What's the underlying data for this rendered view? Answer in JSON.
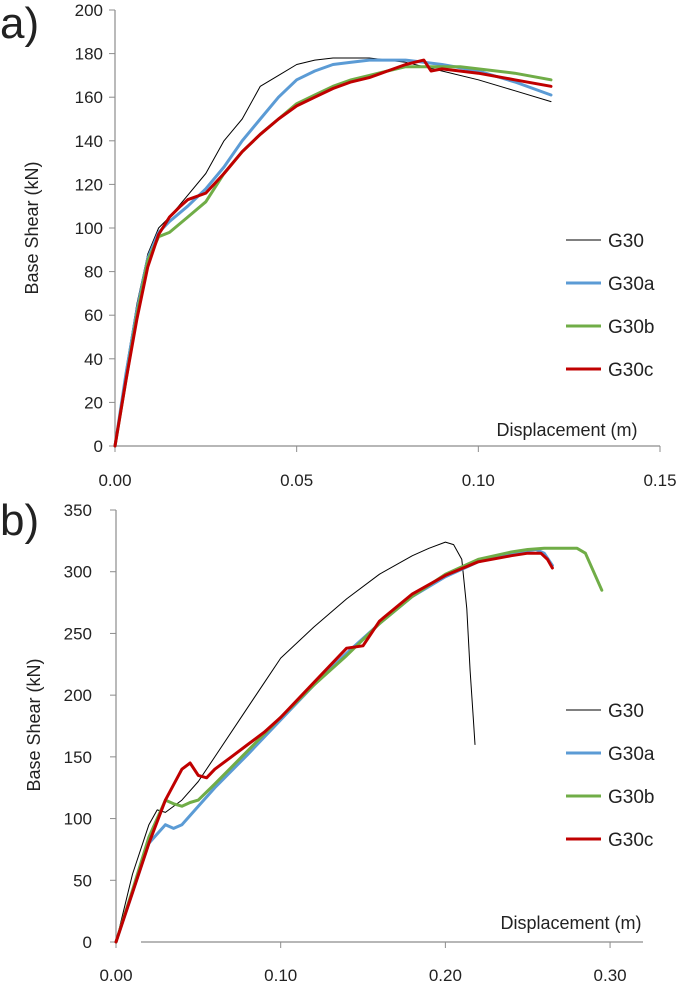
{
  "chart_data": [
    {
      "panel_label": "a)",
      "type": "line",
      "xlabel": "Displacement (m)",
      "ylabel": "Base Shear (kN)",
      "xlim": [
        0,
        0.15
      ],
      "ylim": [
        0,
        200
      ],
      "x_ticks": [
        "0.00",
        "0.05",
        "0.10",
        "0.15"
      ],
      "y_ticks": [
        "0",
        "20",
        "40",
        "60",
        "80",
        "100",
        "120",
        "140",
        "160",
        "180",
        "200"
      ],
      "grid": false,
      "legend_position": "right",
      "series": [
        {
          "name": "G30",
          "color": "#000000",
          "x": [
            0,
            0.003,
            0.006,
            0.009,
            0.012,
            0.015,
            0.02,
            0.025,
            0.03,
            0.035,
            0.04,
            0.045,
            0.05,
            0.055,
            0.06,
            0.065,
            0.07,
            0.075,
            0.08,
            0.09,
            0.1,
            0.11,
            0.12
          ],
          "y": [
            0,
            35,
            65,
            88,
            100,
            105,
            115,
            125,
            140,
            150,
            165,
            170,
            175,
            177,
            178,
            178,
            178,
            177,
            176,
            172,
            168,
            163,
            158
          ]
        },
        {
          "name": "G30a",
          "color": "#5b9bd5",
          "x": [
            0,
            0.003,
            0.006,
            0.009,
            0.012,
            0.015,
            0.02,
            0.025,
            0.03,
            0.035,
            0.04,
            0.045,
            0.05,
            0.055,
            0.06,
            0.065,
            0.07,
            0.075,
            0.08,
            0.085,
            0.09,
            0.1,
            0.11,
            0.12
          ],
          "y": [
            0,
            33,
            62,
            86,
            98,
            103,
            110,
            118,
            128,
            140,
            150,
            160,
            168,
            172,
            175,
            176,
            177,
            177,
            177,
            176,
            175,
            172,
            167,
            161
          ]
        },
        {
          "name": "G30b",
          "color": "#70ad47",
          "x": [
            0,
            0.003,
            0.006,
            0.009,
            0.012,
            0.015,
            0.02,
            0.025,
            0.03,
            0.035,
            0.04,
            0.045,
            0.05,
            0.055,
            0.06,
            0.065,
            0.07,
            0.075,
            0.08,
            0.085,
            0.09,
            0.095,
            0.1,
            0.11,
            0.12
          ],
          "y": [
            0,
            30,
            60,
            85,
            96,
            98,
            105,
            112,
            125,
            135,
            143,
            150,
            157,
            161,
            165,
            168,
            170,
            172,
            174,
            174,
            174,
            174,
            173,
            171,
            168
          ]
        },
        {
          "name": "G30c",
          "color": "#c00000",
          "x": [
            0,
            0.003,
            0.006,
            0.009,
            0.012,
            0.015,
            0.018,
            0.02,
            0.025,
            0.03,
            0.035,
            0.04,
            0.045,
            0.05,
            0.055,
            0.06,
            0.065,
            0.07,
            0.075,
            0.08,
            0.085,
            0.087,
            0.09,
            0.1,
            0.11,
            0.12
          ],
          "y": [
            0,
            30,
            58,
            82,
            97,
            105,
            110,
            113,
            116,
            125,
            135,
            143,
            150,
            156,
            160,
            164,
            167,
            169,
            172,
            175,
            177,
            172,
            173,
            171,
            168,
            165
          ]
        }
      ]
    },
    {
      "panel_label": "b)",
      "type": "line",
      "xlabel": "Displacement (m)",
      "ylabel": "Base Shear (kN)",
      "xlim": [
        0,
        0.32
      ],
      "ylim": [
        0,
        350
      ],
      "x_ticks": [
        "0.00",
        "0.10",
        "0.20",
        "0.30"
      ],
      "y_ticks": [
        "0",
        "50",
        "100",
        "150",
        "200",
        "250",
        "300",
        "350"
      ],
      "grid": false,
      "legend_position": "right",
      "series": [
        {
          "name": "G30",
          "color": "#000000",
          "x": [
            0,
            0.01,
            0.02,
            0.025,
            0.03,
            0.04,
            0.05,
            0.06,
            0.075,
            0.09,
            0.1,
            0.12,
            0.14,
            0.16,
            0.18,
            0.19,
            0.2,
            0.205,
            0.21,
            0.213,
            0.215,
            0.217,
            0.218
          ],
          "y": [
            0,
            55,
            95,
            107,
            105,
            115,
            130,
            150,
            180,
            210,
            230,
            255,
            278,
            298,
            313,
            319,
            324,
            322,
            310,
            270,
            220,
            180,
            160
          ]
        },
        {
          "name": "G30a",
          "color": "#5b9bd5",
          "x": [
            0,
            0.01,
            0.02,
            0.03,
            0.035,
            0.04,
            0.05,
            0.06,
            0.08,
            0.1,
            0.12,
            0.14,
            0.16,
            0.18,
            0.2,
            0.22,
            0.24,
            0.255,
            0.26,
            0.265
          ],
          "y": [
            0,
            40,
            80,
            95,
            92,
            95,
            110,
            125,
            152,
            180,
            208,
            234,
            258,
            280,
            296,
            308,
            315,
            318,
            315,
            305
          ]
        },
        {
          "name": "G30b",
          "color": "#70ad47",
          "x": [
            0,
            0.01,
            0.02,
            0.03,
            0.035,
            0.04,
            0.045,
            0.05,
            0.06,
            0.08,
            0.1,
            0.12,
            0.14,
            0.16,
            0.18,
            0.2,
            0.22,
            0.24,
            0.25,
            0.26,
            0.27,
            0.28,
            0.285,
            0.29,
            0.295
          ],
          "y": [
            0,
            42,
            85,
            115,
            112,
            110,
            113,
            115,
            128,
            155,
            182,
            208,
            232,
            258,
            280,
            298,
            310,
            316,
            318,
            319,
            319,
            319,
            315,
            300,
            285
          ]
        },
        {
          "name": "G30c",
          "color": "#c00000",
          "x": [
            0,
            0.01,
            0.02,
            0.03,
            0.04,
            0.045,
            0.05,
            0.055,
            0.06,
            0.07,
            0.08,
            0.09,
            0.1,
            0.12,
            0.14,
            0.15,
            0.16,
            0.18,
            0.2,
            0.22,
            0.24,
            0.25,
            0.258,
            0.262,
            0.265
          ],
          "y": [
            0,
            40,
            80,
            115,
            140,
            145,
            135,
            133,
            140,
            150,
            160,
            170,
            182,
            210,
            238,
            240,
            260,
            282,
            297,
            308,
            313,
            315,
            315,
            310,
            303
          ]
        }
      ]
    }
  ]
}
